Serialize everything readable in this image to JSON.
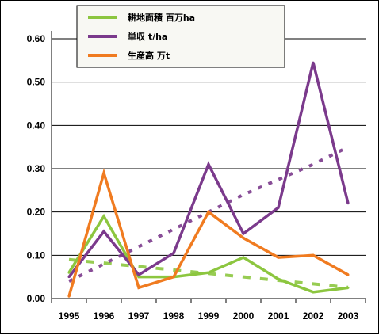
{
  "chart_data": {
    "type": "line",
    "x": [
      "1995",
      "1996",
      "1997",
      "1998",
      "1999",
      "2000",
      "2001",
      "2002",
      "2003"
    ],
    "ylim": [
      0,
      0.6
    ],
    "yticks": [
      "0.00",
      "0.10",
      "0.20",
      "0.30",
      "0.40",
      "0.50",
      "0.60"
    ],
    "grid": true,
    "legend": "top",
    "series": [
      {
        "name": "耕地面積 百万ha",
        "color": "#8cc63f",
        "values": [
          0.06,
          0.19,
          0.05,
          0.05,
          0.06,
          0.095,
          0.045,
          0.015,
          0.025
        ],
        "trend": [
          0.09,
          0.082,
          0.074,
          0.066,
          0.058,
          0.05,
          0.042,
          0.034,
          0.026
        ]
      },
      {
        "name": "単収 t/ha",
        "color": "#7b3a8c",
        "values": [
          0.05,
          0.155,
          0.055,
          0.105,
          0.31,
          0.15,
          0.21,
          0.545,
          0.22
        ],
        "trend": [
          0.04,
          0.08,
          0.12,
          0.16,
          0.2,
          0.24,
          0.275,
          0.31,
          0.35
        ]
      },
      {
        "name": "生産高 万t",
        "color": "#f07b20",
        "values": [
          0.005,
          0.29,
          0.025,
          0.05,
          0.2,
          0.14,
          0.095,
          0.1,
          0.055
        ]
      }
    ]
  }
}
